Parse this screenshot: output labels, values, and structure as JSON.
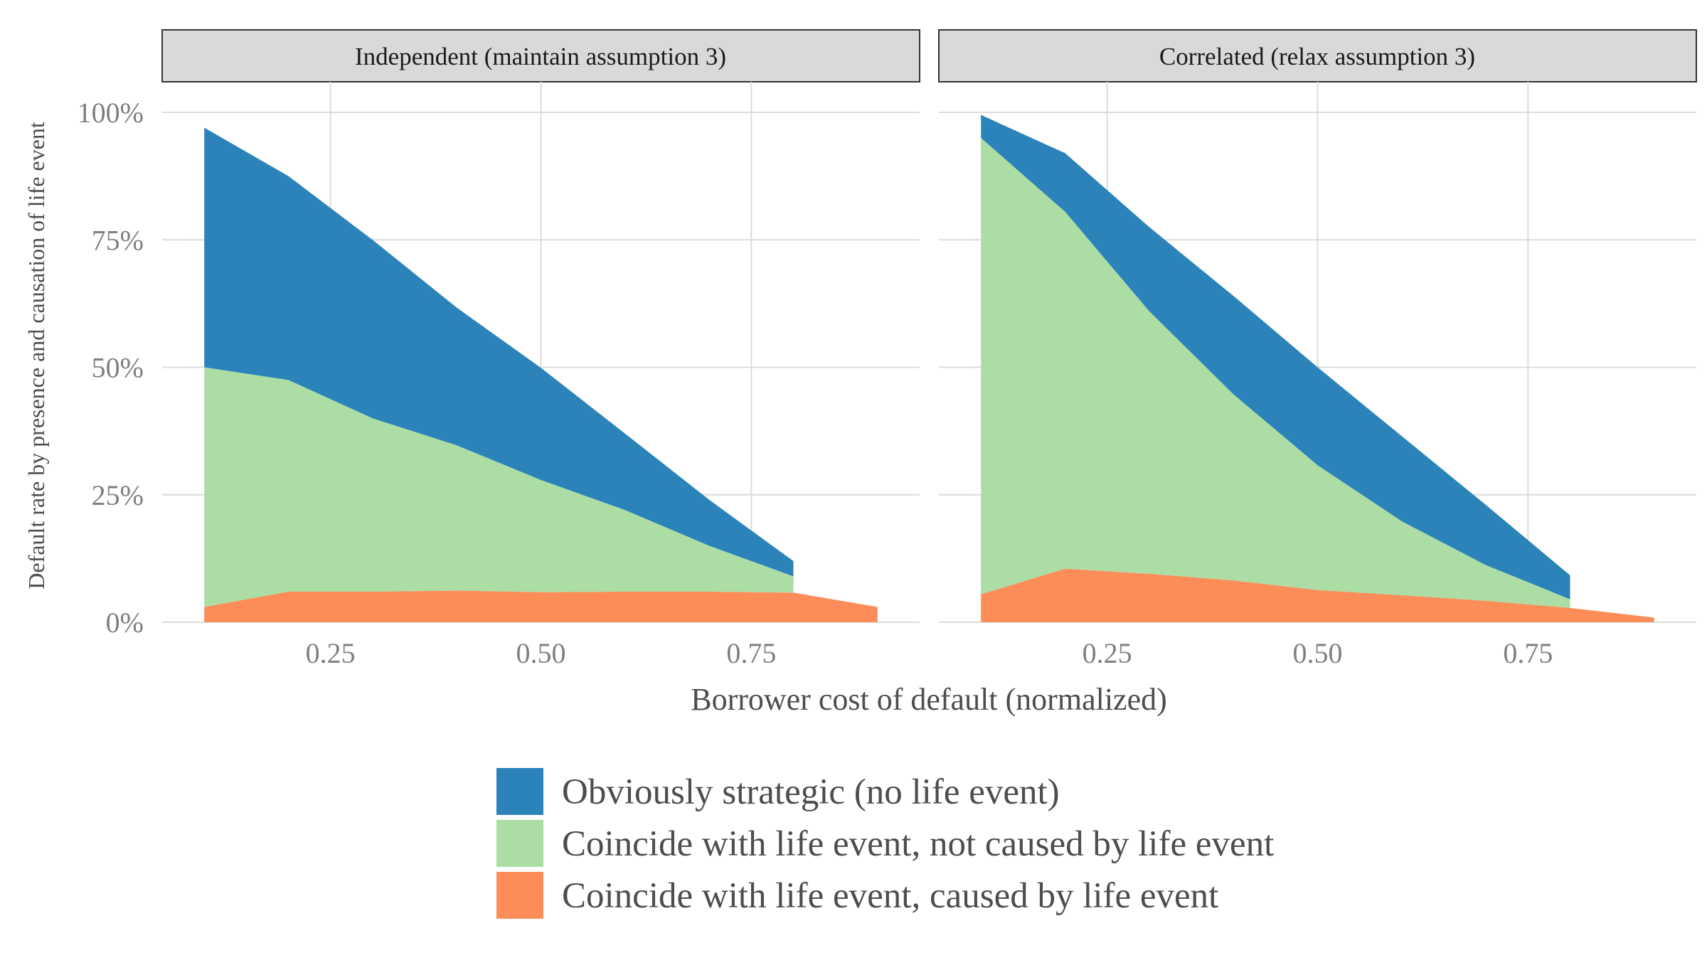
{
  "chart_data": {
    "type": "area",
    "stacked": true,
    "xlabel": "Borrower cost of default (normalized)",
    "ylabel": "Default rate by presence and causation of life event",
    "xlim": [
      0.05,
      0.95
    ],
    "ylim": [
      0,
      1.06
    ],
    "x_ticks": [
      0.25,
      0.5,
      0.75
    ],
    "x_tick_labels": [
      "0.25",
      "0.50",
      "0.75"
    ],
    "y_ticks": [
      0,
      0.25,
      0.5,
      0.75,
      1.0
    ],
    "y_tick_labels": [
      "0%",
      "25%",
      "50%",
      "75%",
      "100%"
    ],
    "grid": true,
    "legend_position": "bottom",
    "series_colors": {
      "caused": "#fc8d59",
      "coincide": "#abdda4",
      "strategic": "#2b83ba"
    },
    "legend": [
      {
        "key": "strategic",
        "label": "Obviously strategic (no life event)"
      },
      {
        "key": "coincide",
        "label": "Coincide with life event, not caused by life event"
      },
      {
        "key": "caused",
        "label": "Coincide with life event, caused by life event"
      }
    ],
    "panels": [
      {
        "strip_label": "Independent (maintain assumption 3)",
        "x": [
          0.1,
          0.2,
          0.3,
          0.4,
          0.5,
          0.6,
          0.7,
          0.8,
          0.9
        ],
        "series": [
          {
            "key": "caused",
            "values": [
              0.03,
              0.06,
              0.06,
              0.062,
              0.059,
              0.06,
              0.06,
              0.058,
              0.03
            ]
          },
          {
            "key": "coincide",
            "values": [
              0.47,
              0.415,
              0.34,
              0.285,
              0.22,
              0.16,
              0.09,
              0.032,
              0
            ]
          },
          {
            "key": "strategic",
            "values": [
              0.47,
              0.4,
              0.35,
              0.27,
              0.22,
              0.15,
              0.09,
              0.03,
              0
            ]
          }
        ],
        "area_end_x": [
          0.9,
          0.8,
          0.8
        ]
      },
      {
        "strip_label": "Correlated (relax assumption 3)",
        "x": [
          0.1,
          0.2,
          0.3,
          0.4,
          0.5,
          0.6,
          0.7,
          0.8,
          0.9
        ],
        "series": [
          {
            "key": "caused",
            "values": [
              0.055,
              0.105,
              0.095,
              0.082,
              0.063,
              0.053,
              0.042,
              0.028,
              0.009
            ]
          },
          {
            "key": "coincide",
            "values": [
              0.895,
              0.7,
              0.515,
              0.365,
              0.245,
              0.145,
              0.07,
              0.017,
              0
            ]
          },
          {
            "key": "strategic",
            "values": [
              0.045,
              0.115,
              0.165,
              0.193,
              0.192,
              0.167,
              0.118,
              0.047,
              0
            ]
          }
        ],
        "area_end_x": [
          0.9,
          0.8,
          0.8
        ]
      }
    ]
  }
}
